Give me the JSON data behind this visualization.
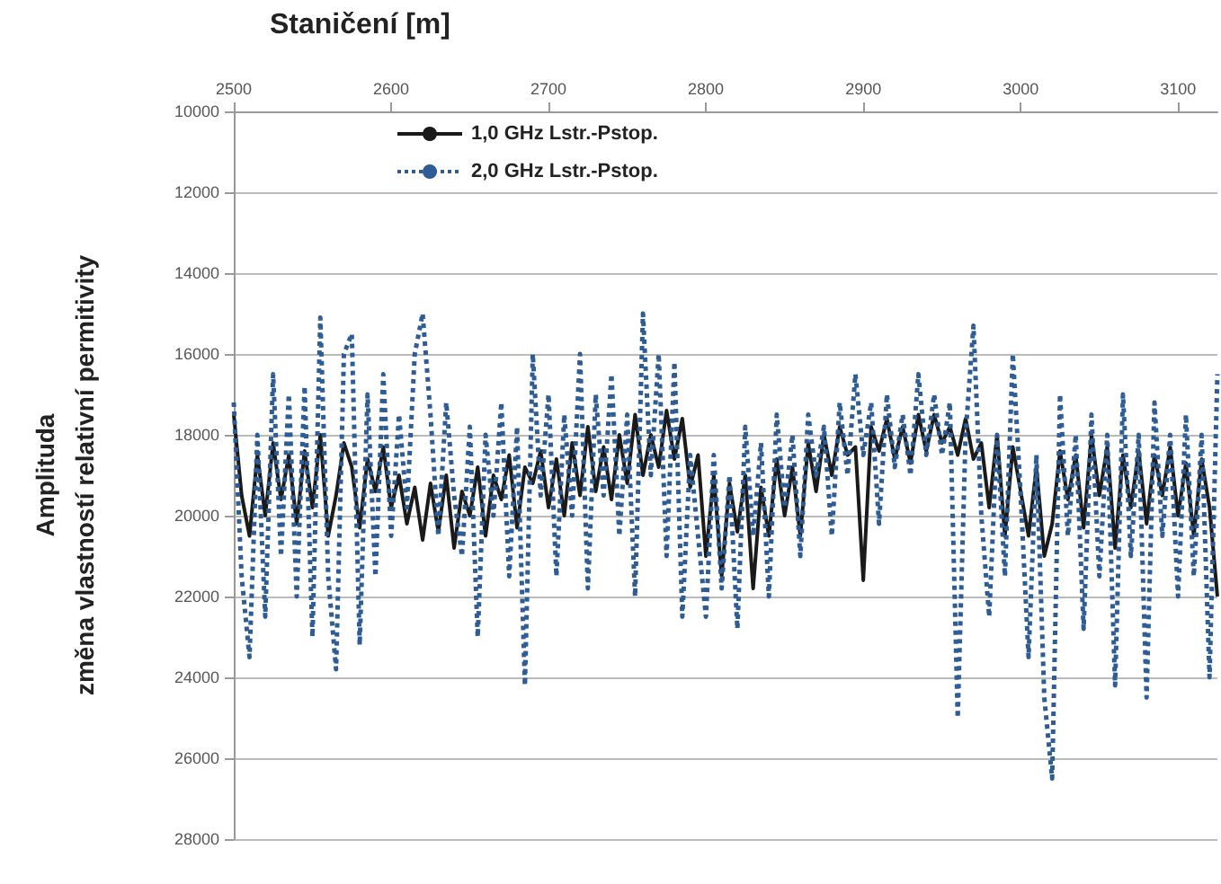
{
  "chart_data": {
    "type": "line",
    "xlabel": "Staničení [m]",
    "ylabel": "Amplituda\nzměna vlastností relativní permitivity",
    "x": [
      2500,
      2505,
      2510,
      2515,
      2520,
      2525,
      2530,
      2535,
      2540,
      2545,
      2550,
      2555,
      2560,
      2565,
      2570,
      2575,
      2580,
      2585,
      2590,
      2595,
      2600,
      2605,
      2610,
      2615,
      2620,
      2625,
      2630,
      2635,
      2640,
      2645,
      2650,
      2655,
      2660,
      2665,
      2670,
      2675,
      2680,
      2685,
      2690,
      2695,
      2700,
      2705,
      2710,
      2715,
      2720,
      2725,
      2730,
      2735,
      2740,
      2745,
      2750,
      2755,
      2760,
      2765,
      2770,
      2775,
      2780,
      2785,
      2790,
      2795,
      2800,
      2805,
      2810,
      2815,
      2820,
      2825,
      2830,
      2835,
      2840,
      2845,
      2850,
      2855,
      2860,
      2865,
      2870,
      2875,
      2880,
      2885,
      2890,
      2895,
      2900,
      2905,
      2910,
      2915,
      2920,
      2925,
      2930,
      2935,
      2940,
      2945,
      2950,
      2955,
      2960,
      2965,
      2970,
      2975,
      2980,
      2985,
      2990,
      2995,
      3000,
      3005,
      3010,
      3015,
      3020,
      3025,
      3030,
      3035,
      3040,
      3045,
      3050,
      3055,
      3060,
      3065,
      3070,
      3075,
      3080,
      3085,
      3090,
      3095,
      3100,
      3105,
      3110,
      3115,
      3120,
      3125
    ],
    "series": [
      {
        "name": "1,0 GHz Lstr.-Pstop.",
        "color": "#1a1a1a",
        "line_style": "solid",
        "values": [
          17500,
          19500,
          20500,
          18500,
          20000,
          18200,
          19600,
          18500,
          20200,
          18400,
          19800,
          18000,
          20500,
          19500,
          18200,
          18800,
          20300,
          18600,
          19400,
          18300,
          19800,
          19000,
          20200,
          19300,
          20600,
          19200,
          20400,
          19000,
          20800,
          19400,
          20000,
          18800,
          20500,
          19000,
          19600,
          18500,
          20300,
          18800,
          19200,
          18400,
          19800,
          18600,
          20000,
          18200,
          19500,
          17800,
          19400,
          18300,
          19600,
          18000,
          19200,
          17500,
          19000,
          18000,
          18800,
          17400,
          18600,
          17600,
          19300,
          18500,
          21000,
          19000,
          21500,
          19200,
          20400,
          19000,
          21800,
          19300,
          20500,
          18600,
          20000,
          18800,
          20500,
          18200,
          19400,
          18000,
          19000,
          17800,
          18500,
          18300,
          21600,
          17800,
          18400,
          17600,
          18600,
          17800,
          18700,
          17500,
          18400,
          17500,
          18200,
          17800,
          18500,
          17600,
          18600,
          18200,
          19800,
          18000,
          20500,
          18300,
          19400,
          20500,
          18800,
          21000,
          20200,
          18400,
          19600,
          18500,
          20300,
          18000,
          19500,
          18300,
          20800,
          18500,
          19800,
          18400,
          20200,
          18500,
          19500,
          18300,
          20000,
          18700,
          20500,
          18600,
          19800,
          22000
        ]
      },
      {
        "name": "2,0 GHz Lstr.-Pstop.",
        "color": "#2e5c94",
        "line_style": "dotted",
        "values": [
          17200,
          21500,
          23500,
          18000,
          22500,
          16500,
          21000,
          17000,
          22000,
          16800,
          23000,
          15100,
          21500,
          23800,
          16000,
          15500,
          23200,
          17000,
          21500,
          16500,
          20500,
          17500,
          19800,
          16000,
          15000,
          17500,
          20500,
          17200,
          19500,
          21000,
          17800,
          23000,
          18000,
          20000,
          17200,
          21500,
          17800,
          24200,
          16000,
          19500,
          17000,
          21500,
          17500,
          20000,
          16000,
          21800,
          17000,
          19500,
          16500,
          20500,
          17500,
          22000,
          15000,
          19000,
          16000,
          21000,
          16200,
          22500,
          18500,
          20500,
          22500,
          18500,
          21800,
          19000,
          22800,
          17800,
          20500,
          18200,
          22000,
          17500,
          19800,
          18000,
          21000,
          17500,
          19000,
          17800,
          20500,
          17200,
          19000,
          16500,
          18500,
          17200,
          20200,
          17000,
          18800,
          17500,
          19000,
          16500,
          18500,
          17000,
          18500,
          17200,
          25000,
          18000,
          15300,
          20000,
          22500,
          18000,
          21500,
          16000,
          19500,
          23500,
          18500,
          24500,
          26500,
          17000,
          20500,
          18000,
          22800,
          17500,
          21500,
          18000,
          24200,
          17000,
          21000,
          18000,
          24500,
          17200,
          20500,
          18000,
          22000,
          17500,
          21500,
          18000,
          24000,
          16500
        ]
      }
    ],
    "xlim": [
      2500,
      3125
    ],
    "xticks": [
      2500,
      2600,
      2700,
      2800,
      2900,
      3000,
      3100
    ],
    "ylim": [
      28000,
      10000
    ],
    "yticks": [
      10000,
      12000,
      14000,
      16000,
      18000,
      20000,
      22000,
      24000,
      26000,
      28000
    ],
    "grid": "y",
    "legend": "top left",
    "marker": "none"
  }
}
